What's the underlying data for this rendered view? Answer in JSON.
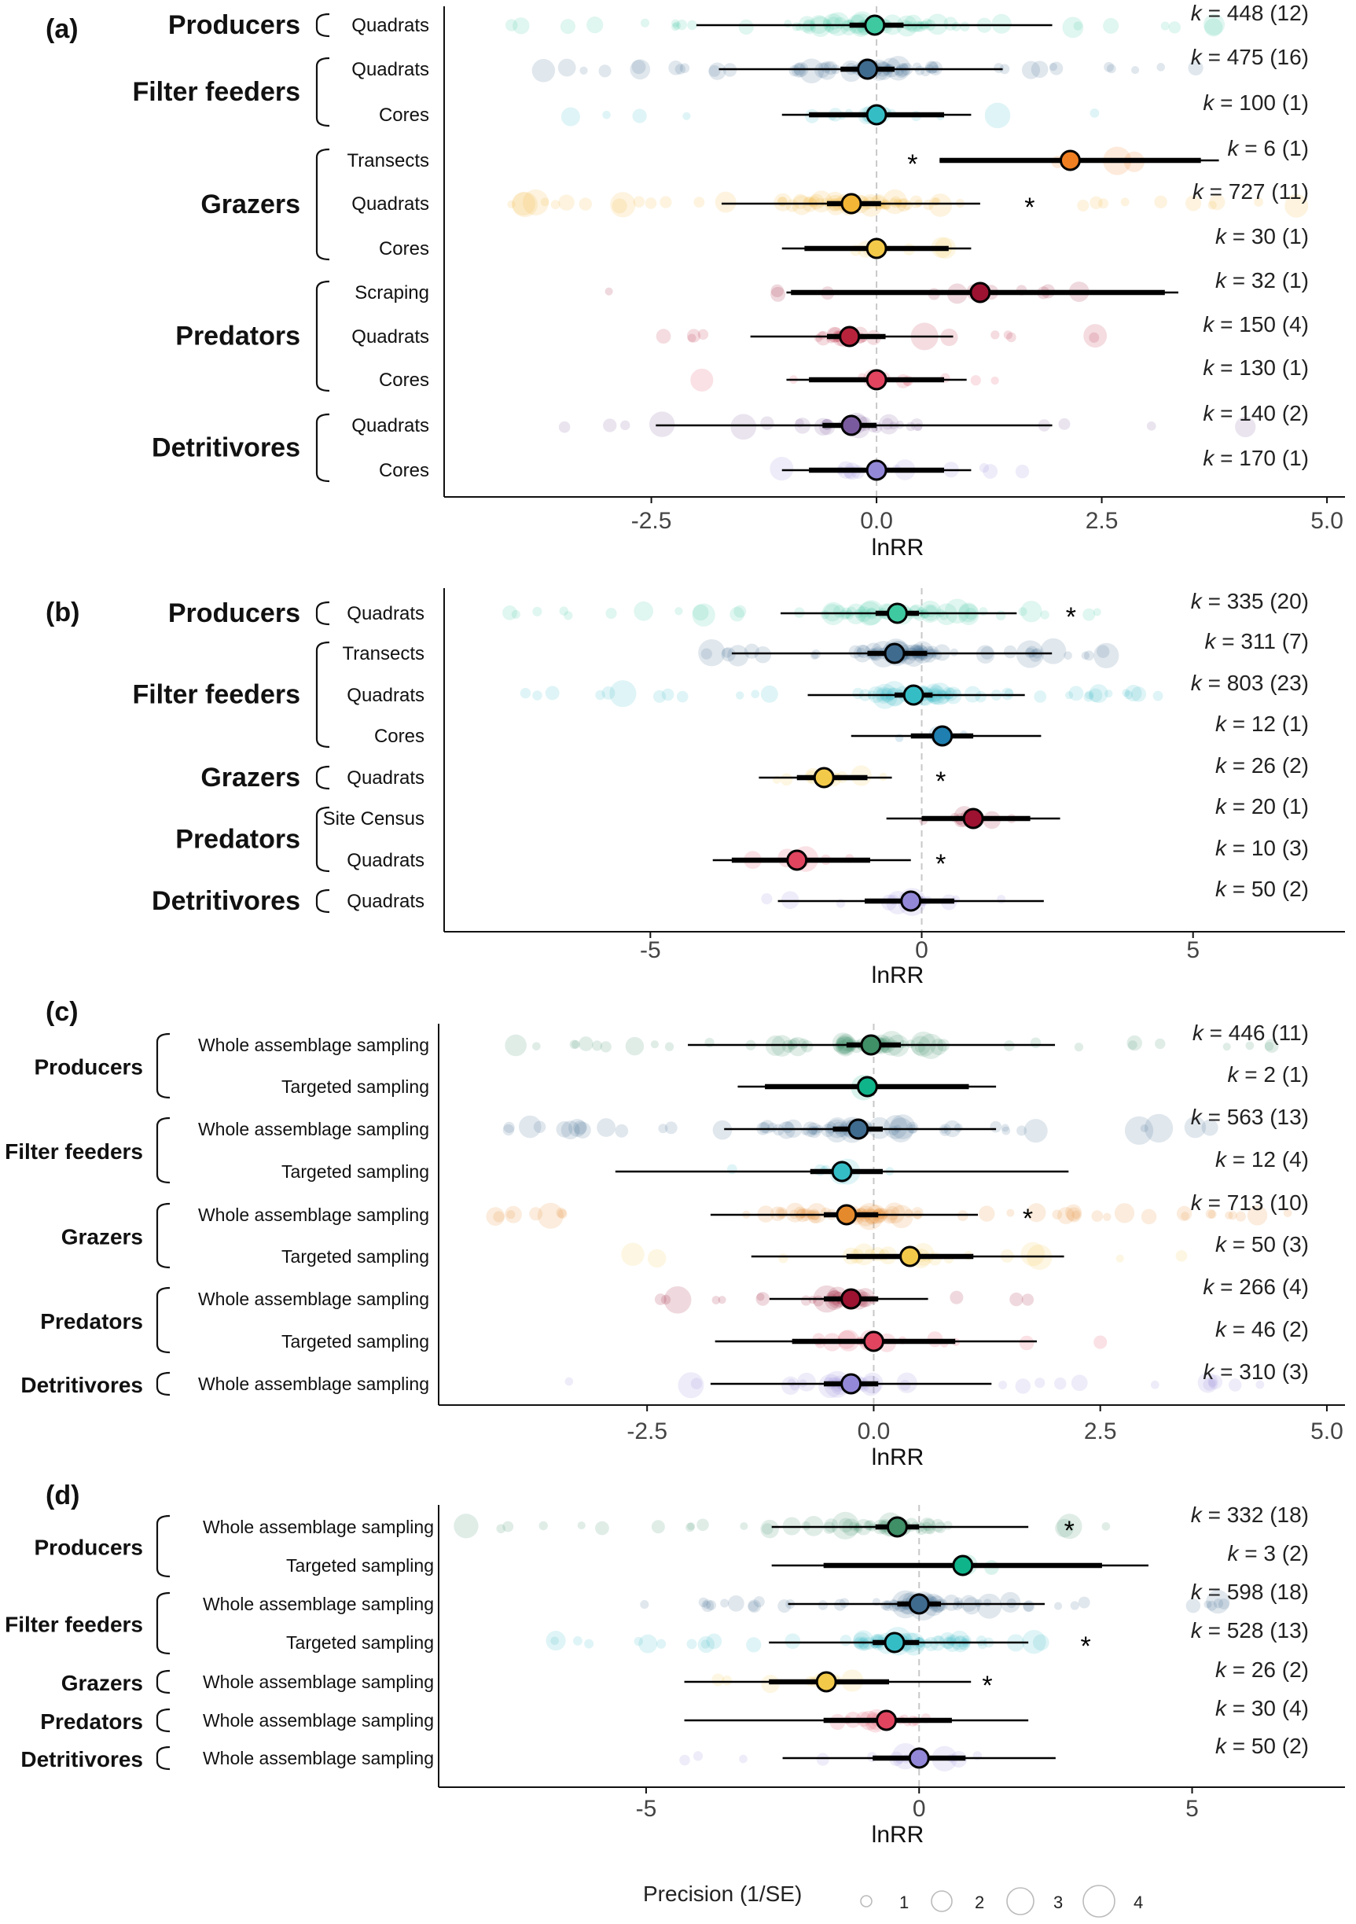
{
  "figure": {
    "x_axis_label": "lnRR",
    "legend": {
      "title": "Precision (1/SE)",
      "items": [
        "1",
        "2",
        "3",
        "4"
      ]
    },
    "significance_mark": "*",
    "k_prefix": "k",
    "colors": {
      "Producers": "#3ec9a0",
      "Filter feeders": "#3f6b8f",
      "Filter feeders alt": "#35bdc6",
      "Grazers transects": "#f07f22",
      "Grazers": "#f2b535",
      "Grazers targeted": "#f3c94a",
      "Predators scraping": "#9c1230",
      "Predators": "#b8233c",
      "Predators cores": "#e0445f",
      "Detritivores": "#9388d8",
      "Producers c": "#3f8f67",
      "Grazers c": "#e58a2c"
    }
  },
  "chart_data": [
    {
      "panel": "(a)",
      "type": "scatter",
      "subtype": "forest plot with effect-size distribution",
      "xlabel": "lnRR",
      "xlim": [
        -4.8,
        5.2
      ],
      "xticks": [
        -2.5,
        0.0,
        2.5,
        5.0
      ],
      "xtick_labels": [
        "-2.5",
        "0.0",
        "2.5",
        "5.0"
      ],
      "vline": 0,
      "groups": [
        {
          "name": "Producers",
          "rows": [
            0
          ]
        },
        {
          "name": "Filter feeders",
          "rows": [
            1,
            2
          ]
        },
        {
          "name": "Grazers",
          "rows": [
            3,
            4,
            5
          ]
        },
        {
          "name": "Predators",
          "rows": [
            6,
            7,
            8
          ]
        },
        {
          "name": "Detritivores",
          "rows": [
            9,
            10
          ]
        }
      ],
      "rows": [
        {
          "label": "Quadrats",
          "mean": -0.02,
          "ci_inner": [
            -0.3,
            0.3
          ],
          "ci_outer": [
            -2.0,
            1.95
          ],
          "k": "448 (12)",
          "sig": false,
          "color": "#3ec9a0",
          "spread": [
            -4.4,
            3.9
          ],
          "n": 70
        },
        {
          "label": "Quadrats",
          "mean": -0.1,
          "ci_inner": [
            -0.4,
            0.2
          ],
          "ci_outer": [
            -1.75,
            1.4
          ],
          "k": "475 (16)",
          "sig": false,
          "color": "#3f6b8f",
          "spread": [
            -3.9,
            3.8
          ],
          "n": 65
        },
        {
          "label": "Cores",
          "mean": 0.0,
          "ci_inner": [
            -0.75,
            0.75
          ],
          "ci_outer": [
            -1.05,
            1.05
          ],
          "k": "100 (1)",
          "sig": false,
          "color": "#35bdc6",
          "spread": [
            -4.3,
            3.0
          ],
          "n": 20
        },
        {
          "label": "Transects",
          "mean": 2.15,
          "ci_inner": [
            0.7,
            3.6
          ],
          "ci_outer": [
            0.7,
            3.8
          ],
          "k": "6 (1)",
          "sig": true,
          "sig_x": 0.4,
          "color": "#f07f22",
          "spread": [
            1.5,
            3.0
          ],
          "n": 5
        },
        {
          "label": "Quadrats",
          "mean": -0.28,
          "ci_inner": [
            -0.55,
            0.05
          ],
          "ci_outer": [
            -1.72,
            1.15
          ],
          "k": "727 (11)",
          "sig": true,
          "sig_x": 1.7,
          "color": "#f2b535",
          "spread": [
            -4.2,
            4.7
          ],
          "n": 80
        },
        {
          "label": "Cores",
          "mean": 0.0,
          "ci_inner": [
            -0.8,
            0.8
          ],
          "ci_outer": [
            -1.05,
            1.05
          ],
          "k": "30 (1)",
          "sig": false,
          "color": "#f3c94a",
          "spread": [
            -2.0,
            1.5
          ],
          "n": 8
        },
        {
          "label": "Scraping",
          "mean": 1.15,
          "ci_inner": [
            -0.95,
            3.2
          ],
          "ci_outer": [
            -1.0,
            3.35
          ],
          "k": "32 (1)",
          "sig": false,
          "color": "#9c1230",
          "spread": [
            -3.0,
            3.6
          ],
          "n": 14
        },
        {
          "label": "Quadrats",
          "mean": -0.3,
          "ci_inner": [
            -0.55,
            0.1
          ],
          "ci_outer": [
            -1.4,
            0.85
          ],
          "k": "150 (4)",
          "sig": false,
          "color": "#b8233c",
          "spread": [
            -2.6,
            2.6
          ],
          "n": 30
        },
        {
          "label": "Cores",
          "mean": 0.0,
          "ci_inner": [
            -0.75,
            0.75
          ],
          "ci_outer": [
            -1.0,
            1.0
          ],
          "k": "130 (1)",
          "sig": false,
          "color": "#e0445f",
          "spread": [
            -2.0,
            1.5
          ],
          "n": 14
        },
        {
          "label": "Quadrats",
          "mean": -0.28,
          "ci_inner": [
            -0.6,
            0.0
          ],
          "ci_outer": [
            -2.45,
            1.95
          ],
          "k": "140 (2)",
          "sig": false,
          "color": "#7a5a9e",
          "spread": [
            -3.6,
            4.3
          ],
          "n": 30
        },
        {
          "label": "Cores",
          "mean": 0.0,
          "ci_inner": [
            -0.75,
            0.75
          ],
          "ci_outer": [
            -1.05,
            1.05
          ],
          "k": "170 (1)",
          "sig": false,
          "color": "#9388d8",
          "spread": [
            -2.3,
            3.4
          ],
          "n": 16
        }
      ]
    },
    {
      "panel": "(b)",
      "type": "scatter",
      "subtype": "forest plot with effect-size distribution",
      "xlabel": "lnRR",
      "xlim": [
        -8.8,
        7.8
      ],
      "xticks": [
        -5,
        0,
        5
      ],
      "xtick_labels": [
        "-5",
        "0",
        "5"
      ],
      "vline": 0,
      "groups": [
        {
          "name": "Producers",
          "rows": [
            0
          ]
        },
        {
          "name": "Filter feeders",
          "rows": [
            1,
            2,
            3
          ]
        },
        {
          "name": "Grazers",
          "rows": [
            4
          ]
        },
        {
          "name": "Predators",
          "rows": [
            5,
            6
          ]
        },
        {
          "name": "Detritivores",
          "rows": [
            7
          ]
        }
      ],
      "rows": [
        {
          "label": "Quadrats",
          "mean": -0.45,
          "ci_inner": [
            -0.85,
            -0.05
          ],
          "ci_outer": [
            -2.6,
            1.75
          ],
          "k": "335 (20)",
          "sig": true,
          "sig_x": 2.75,
          "color": "#3ec9a0",
          "spread": [
            -8.5,
            3.5
          ],
          "n": 60
        },
        {
          "label": "Transects",
          "mean": -0.5,
          "ci_inner": [
            -1.0,
            0.1
          ],
          "ci_outer": [
            -3.5,
            2.4
          ],
          "k": "311 (7)",
          "sig": false,
          "color": "#3f6b8f",
          "spread": [
            -4.0,
            4.0
          ],
          "n": 70
        },
        {
          "label": "Quadrats",
          "mean": -0.15,
          "ci_inner": [
            -0.5,
            0.2
          ],
          "ci_outer": [
            -2.1,
            1.9
          ],
          "k": "803 (23)",
          "sig": false,
          "color": "#35bdc6",
          "spread": [
            -7.5,
            4.5
          ],
          "n": 75
        },
        {
          "label": "Cores",
          "mean": 0.38,
          "ci_inner": [
            -0.2,
            0.95
          ],
          "ci_outer": [
            -1.3,
            2.2
          ],
          "k": "12 (1)",
          "sig": false,
          "color": "#1f7fb0",
          "spread": [
            -0.8,
            1.8
          ],
          "n": 5
        },
        {
          "label": "Quadrats",
          "mean": -1.8,
          "ci_inner": [
            -2.3,
            -1.0
          ],
          "ci_outer": [
            -3.0,
            -0.55
          ],
          "k": "26 (2)",
          "sig": true,
          "sig_x": 0.35,
          "color": "#f3c94a",
          "spread": [
            -3.8,
            -0.7
          ],
          "n": 14
        },
        {
          "label": "Site Census",
          "mean": 0.95,
          "ci_inner": [
            0.0,
            2.0
          ],
          "ci_outer": [
            -0.65,
            2.55
          ],
          "k": "20 (1)",
          "sig": false,
          "color": "#9c1230",
          "spread": [
            -0.5,
            3.0
          ],
          "n": 10
        },
        {
          "label": "Quadrats",
          "mean": -2.3,
          "ci_inner": [
            -3.5,
            -0.95
          ],
          "ci_outer": [
            -3.85,
            -0.2
          ],
          "k": "10 (3)",
          "sig": true,
          "sig_x": 0.35,
          "color": "#e0445f",
          "spread": [
            -3.5,
            -0.5
          ],
          "n": 8
        },
        {
          "label": "Quadrats",
          "mean": -0.2,
          "ci_inner": [
            -1.05,
            0.6
          ],
          "ci_outer": [
            -2.65,
            2.25
          ],
          "k": "50 (2)",
          "sig": false,
          "color": "#9388d8",
          "spread": [
            -4.5,
            2.5
          ],
          "n": 14
        }
      ]
    },
    {
      "panel": "(c)",
      "type": "scatter",
      "subtype": "forest plot with effect-size distribution",
      "xlabel": "lnRR",
      "xlim": [
        -4.8,
        5.2
      ],
      "xticks": [
        -2.5,
        0.0,
        2.5,
        5.0
      ],
      "xtick_labels": [
        "-2.5",
        "0.0",
        "2.5",
        "5.0"
      ],
      "vline": 0,
      "groups": [
        {
          "name": "Producers",
          "rows": [
            0,
            1
          ]
        },
        {
          "name": "Filter feeders",
          "rows": [
            2,
            3
          ]
        },
        {
          "name": "Grazers",
          "rows": [
            4,
            5
          ]
        },
        {
          "name": "Predators",
          "rows": [
            6,
            7
          ]
        },
        {
          "name": "Detritivores",
          "rows": [
            8
          ]
        }
      ],
      "rows": [
        {
          "label": "Whole assemblage sampling",
          "mean": -0.03,
          "ci_inner": [
            -0.3,
            0.3
          ],
          "ci_outer": [
            -2.05,
            2.0
          ],
          "k": "446 (11)",
          "sig": false,
          "color": "#3f8f67",
          "spread": [
            -4.4,
            4.6
          ],
          "n": 70
        },
        {
          "label": "Targeted sampling",
          "mean": -0.07,
          "ci_inner": [
            -1.2,
            1.05
          ],
          "ci_outer": [
            -1.5,
            1.35
          ],
          "k": "2 (1)",
          "sig": false,
          "color": "#10b48a",
          "spread": [
            -0.3,
            0.2
          ],
          "n": 2
        },
        {
          "label": "Whole assemblage sampling",
          "mean": -0.17,
          "ci_inner": [
            -0.45,
            0.1
          ],
          "ci_outer": [
            -1.65,
            1.35
          ],
          "k": "563 (13)",
          "sig": false,
          "color": "#3f6b8f",
          "spread": [
            -4.4,
            3.9
          ],
          "n": 70
        },
        {
          "label": "Targeted sampling",
          "mean": -0.35,
          "ci_inner": [
            -0.7,
            0.1
          ],
          "ci_outer": [
            -2.85,
            2.15
          ],
          "k": "12 (4)",
          "sig": false,
          "color": "#35bdc6",
          "spread": [
            -1.6,
            0.9
          ],
          "n": 10
        },
        {
          "label": "Whole assemblage sampling",
          "mean": -0.3,
          "ci_inner": [
            -0.55,
            0.05
          ],
          "ci_outer": [
            -1.8,
            1.15
          ],
          "k": "713 (10)",
          "sig": true,
          "sig_x": 1.7,
          "color": "#e58a2c",
          "spread": [
            -4.2,
            4.6
          ],
          "n": 80
        },
        {
          "label": "Targeted sampling",
          "mean": 0.4,
          "ci_inner": [
            -0.3,
            1.1
          ],
          "ci_outer": [
            -1.35,
            2.1
          ],
          "k": "50 (3)",
          "sig": false,
          "color": "#f3c94a",
          "spread": [
            -3.8,
            3.4
          ],
          "n": 24
        },
        {
          "label": "Whole assemblage sampling",
          "mean": -0.25,
          "ci_inner": [
            -0.55,
            0.05
          ],
          "ci_outer": [
            -1.15,
            0.6
          ],
          "k": "266 (4)",
          "sig": false,
          "color": "#9c1230",
          "spread": [
            -2.4,
            2.0
          ],
          "n": 30
        },
        {
          "label": "Targeted sampling",
          "mean": 0.0,
          "ci_inner": [
            -0.9,
            0.9
          ],
          "ci_outer": [
            -1.75,
            1.8
          ],
          "k": "46 (2)",
          "sig": false,
          "color": "#e0445f",
          "spread": [
            -1.5,
            2.8
          ],
          "n": 18
        },
        {
          "label": "Whole assemblage sampling",
          "mean": -0.25,
          "ci_inner": [
            -0.55,
            0.05
          ],
          "ci_outer": [
            -1.8,
            1.3
          ],
          "k": "310 (3)",
          "sig": false,
          "color": "#9388d8",
          "spread": [
            -4.3,
            4.3
          ],
          "n": 40
        }
      ]
    },
    {
      "panel": "(d)",
      "type": "scatter",
      "subtype": "forest plot with effect-size distribution",
      "xlabel": "lnRR",
      "xlim": [
        -8.8,
        7.8
      ],
      "xticks": [
        -5,
        0,
        5
      ],
      "xtick_labels": [
        "-5",
        "0",
        "5"
      ],
      "vline": 0,
      "groups": [
        {
          "name": "Producers",
          "rows": [
            0,
            1
          ]
        },
        {
          "name": "Filter feeders",
          "rows": [
            2,
            3
          ]
        },
        {
          "name": "Grazers",
          "rows": [
            4
          ]
        },
        {
          "name": "Predators",
          "rows": [
            5
          ]
        },
        {
          "name": "Detritivores",
          "rows": [
            6
          ]
        }
      ],
      "rows": [
        {
          "label": "Whole assemblage sampling",
          "mean": -0.4,
          "ci_inner": [
            -0.8,
            0.0
          ],
          "ci_outer": [
            -2.7,
            2.0
          ],
          "k": "332 (18)",
          "sig": true,
          "sig_x": 2.75,
          "color": "#3f8f67",
          "spread": [
            -8.5,
            3.5
          ],
          "n": 55
        },
        {
          "label": "Targeted sampling",
          "mean": 0.8,
          "ci_inner": [
            -1.75,
            3.35
          ],
          "ci_outer": [
            -2.7,
            4.2
          ],
          "k": "3 (2)",
          "sig": false,
          "color": "#10b48a",
          "spread": [
            0.0,
            1.5
          ],
          "n": 3
        },
        {
          "label": "Whole assemblage sampling",
          "mean": 0.0,
          "ci_inner": [
            -0.4,
            0.4
          ],
          "ci_outer": [
            -2.4,
            2.3
          ],
          "k": "598 (18)",
          "sig": false,
          "color": "#3f6b8f",
          "spread": [
            -5.2,
            6.0
          ],
          "n": 70
        },
        {
          "label": "Targeted sampling",
          "mean": -0.45,
          "ci_inner": [
            -0.85,
            0.0
          ],
          "ci_outer": [
            -2.75,
            2.0
          ],
          "k": "528 (13)",
          "sig": true,
          "sig_x": 3.05,
          "color": "#35bdc6",
          "spread": [
            -7.5,
            4.0
          ],
          "n": 70
        },
        {
          "label": "Whole assemblage sampling",
          "mean": -1.7,
          "ci_inner": [
            -2.75,
            -0.55
          ],
          "ci_outer": [
            -4.3,
            0.95
          ],
          "k": "26 (2)",
          "sig": true,
          "sig_x": 1.25,
          "color": "#f3c94a",
          "spread": [
            -3.8,
            -0.7
          ],
          "n": 14
        },
        {
          "label": "Whole assemblage sampling",
          "mean": -0.6,
          "ci_inner": [
            -1.75,
            0.6
          ],
          "ci_outer": [
            -4.3,
            2.0
          ],
          "k": "30 (4)",
          "sig": false,
          "color": "#e0445f",
          "spread": [
            -4.0,
            2.5
          ],
          "n": 14
        },
        {
          "label": "Whole assemblage sampling",
          "mean": 0.0,
          "ci_inner": [
            -0.85,
            0.85
          ],
          "ci_outer": [
            -2.5,
            2.5
          ],
          "k": "50 (2)",
          "sig": false,
          "color": "#9388d8",
          "spread": [
            -4.6,
            2.6
          ],
          "n": 14
        }
      ]
    }
  ]
}
